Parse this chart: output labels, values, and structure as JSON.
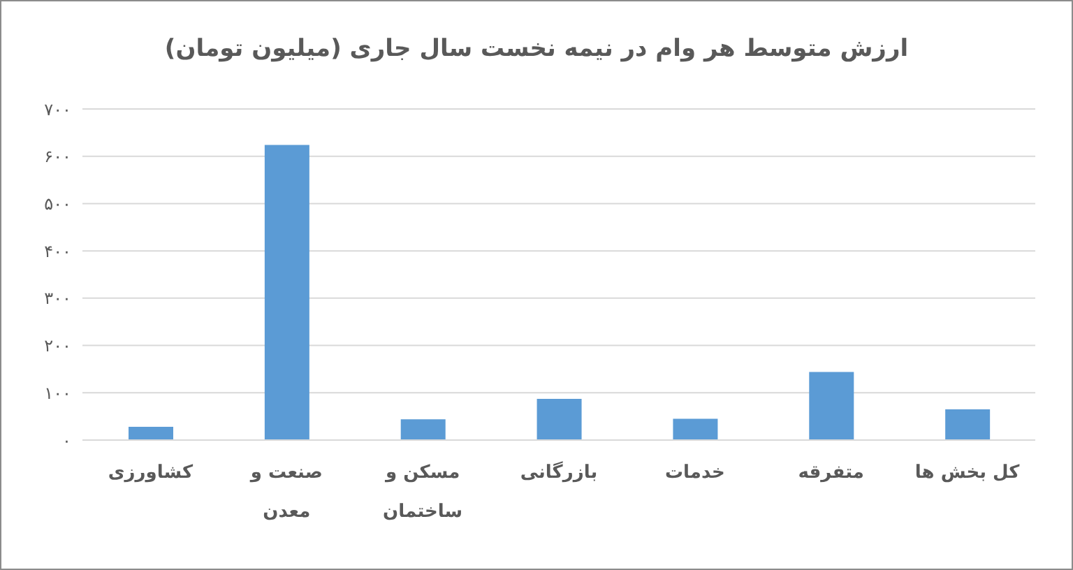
{
  "chart_data": {
    "type": "bar",
    "title": "ارزش متوسط هر وام در نیمه نخست سال جاری (میلیون تومان)",
    "categories": [
      "کشاورزی",
      "صنعت و معدن",
      "مسکن و ساختمان",
      "بازرگانی",
      "خدمات",
      "متفرقه",
      "کل بخش ها"
    ],
    "values": [
      28,
      624,
      44,
      87,
      45,
      144,
      65
    ],
    "color": "#5b9bd5",
    "ylim": [
      0,
      700
    ],
    "yticks": [
      {
        "value": 0,
        "label": "۰"
      },
      {
        "value": 100,
        "label": "۱۰۰"
      },
      {
        "value": 200,
        "label": "۲۰۰"
      },
      {
        "value": 300,
        "label": "۳۰۰"
      },
      {
        "value": 400,
        "label": "۴۰۰"
      },
      {
        "value": 500,
        "label": "۵۰۰"
      },
      {
        "value": 600,
        "label": "۶۰۰"
      },
      {
        "value": 700,
        "label": "۷۰۰"
      }
    ],
    "grid": "y"
  }
}
